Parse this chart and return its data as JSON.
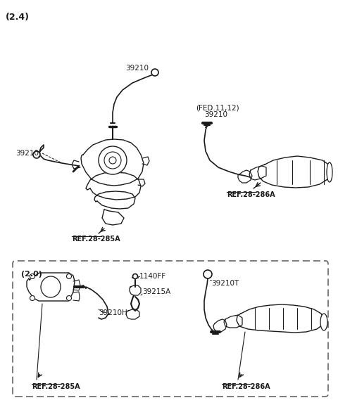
{
  "bg_color": "#ffffff",
  "line_color": "#1a1a1a",
  "label_24": "(2.4)",
  "label_20": "(2.0)",
  "part_39210": "39210",
  "part_39210J": "39210J",
  "part_39210_fed": "39210",
  "part_fed_note": "(FED.11,12)",
  "part_ref285A_top": "REF.28-285A",
  "part_ref286A_top": "REF.28-286A",
  "part_1140FF": "1140FF",
  "part_39215A": "39215A",
  "part_39210T": "39210T",
  "part_39210H": "39210H",
  "part_ref285A_bot": "REF.28-285A",
  "part_ref286A_bot": "REF.28-286A",
  "fig_width": 4.8,
  "fig_height": 5.76,
  "dpi": 100
}
